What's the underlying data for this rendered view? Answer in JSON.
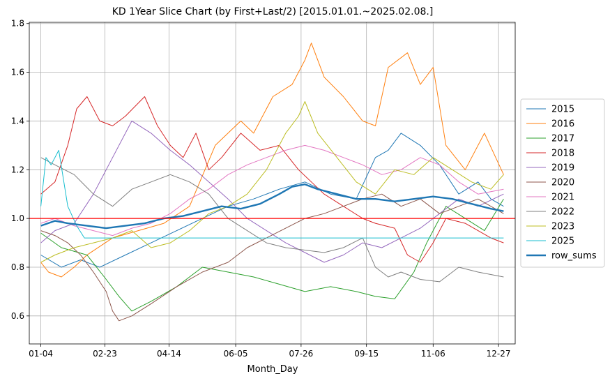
{
  "chart_data": {
    "type": "line",
    "title": "KD 1Year Slice Chart (by First+Last/2) [2015.01.01.~2025.02.08.]",
    "xlabel": "Month_Day",
    "ylabel": "",
    "x_ticks": [
      "01-04",
      "02-23",
      "04-14",
      "06-05",
      "07-26",
      "09-15",
      "11-06",
      "12-27"
    ],
    "x_tick_days": [
      4,
      54,
      104,
      156,
      207,
      258,
      310,
      361
    ],
    "xlim": [
      -5,
      374
    ],
    "ylim": [
      0.485,
      1.805
    ],
    "y_ticks": [
      0.6,
      0.8,
      1.0,
      1.2,
      1.4,
      1.6,
      1.8
    ],
    "y_tick_labels": [
      "0.6",
      "0.8",
      "1.0",
      "1.2",
      "1.4",
      "1.6",
      "1.8"
    ],
    "grid": true,
    "reference_line": {
      "y": 1.0,
      "color": "#ff0000"
    },
    "legend_position": "center-right",
    "series": [
      {
        "name": "2015",
        "color": "#1f77b4",
        "width": 1,
        "x": [
          4,
          20,
          35,
          50,
          70,
          90,
          110,
          130,
          150,
          170,
          190,
          210,
          230,
          250,
          265,
          275,
          285,
          300,
          315,
          330,
          345,
          355,
          365
        ],
        "y": [
          0.85,
          0.8,
          0.83,
          0.8,
          0.85,
          0.9,
          0.95,
          1.0,
          1.05,
          1.08,
          1.12,
          1.15,
          1.1,
          1.08,
          1.25,
          1.28,
          1.35,
          1.3,
          1.22,
          1.1,
          1.15,
          1.08,
          1.05
        ]
      },
      {
        "name": "2016",
        "color": "#ff7f0e",
        "width": 1,
        "x": [
          4,
          10,
          20,
          30,
          40,
          60,
          80,
          100,
          120,
          140,
          160,
          170,
          185,
          200,
          210,
          215,
          225,
          240,
          255,
          265,
          275,
          290,
          300,
          310,
          320,
          335,
          350,
          365
        ],
        "y": [
          0.82,
          0.78,
          0.76,
          0.8,
          0.85,
          0.92,
          0.95,
          0.98,
          1.05,
          1.3,
          1.4,
          1.35,
          1.5,
          1.55,
          1.65,
          1.72,
          1.58,
          1.5,
          1.4,
          1.38,
          1.62,
          1.68,
          1.55,
          1.62,
          1.3,
          1.2,
          1.35,
          1.18
        ]
      },
      {
        "name": "2017",
        "color": "#2ca02c",
        "width": 1,
        "x": [
          4,
          20,
          40,
          55,
          65,
          75,
          90,
          110,
          130,
          150,
          170,
          190,
          210,
          230,
          250,
          265,
          280,
          295,
          305,
          320,
          335,
          350,
          365
        ],
        "y": [
          0.94,
          0.88,
          0.85,
          0.75,
          0.68,
          0.62,
          0.66,
          0.72,
          0.8,
          0.78,
          0.76,
          0.73,
          0.7,
          0.72,
          0.7,
          0.68,
          0.67,
          0.78,
          0.9,
          1.05,
          1.0,
          0.95,
          1.08
        ]
      },
      {
        "name": "2018",
        "color": "#d62728",
        "width": 1,
        "x": [
          4,
          15,
          25,
          32,
          40,
          50,
          60,
          70,
          85,
          95,
          105,
          115,
          125,
          135,
          145,
          160,
          175,
          190,
          205,
          215,
          225,
          240,
          255,
          265,
          280,
          290,
          300,
          310,
          320,
          335,
          345,
          355,
          365
        ],
        "y": [
          1.1,
          1.15,
          1.3,
          1.45,
          1.5,
          1.4,
          1.38,
          1.42,
          1.5,
          1.38,
          1.3,
          1.25,
          1.35,
          1.2,
          1.25,
          1.35,
          1.28,
          1.3,
          1.2,
          1.15,
          1.1,
          1.05,
          1.0,
          0.98,
          0.96,
          0.85,
          0.82,
          0.9,
          1.0,
          0.98,
          0.95,
          0.92,
          0.9
        ]
      },
      {
        "name": "2019",
        "color": "#9467bd",
        "width": 1,
        "x": [
          4,
          15,
          30,
          45,
          60,
          75,
          90,
          105,
          120,
          135,
          150,
          165,
          180,
          195,
          210,
          225,
          240,
          255,
          270,
          285,
          300,
          315,
          330,
          345,
          365
        ],
        "y": [
          0.9,
          0.95,
          0.98,
          1.1,
          1.25,
          1.4,
          1.35,
          1.28,
          1.22,
          1.15,
          1.08,
          1.0,
          0.95,
          0.9,
          0.86,
          0.82,
          0.85,
          0.9,
          0.88,
          0.92,
          0.96,
          1.02,
          1.08,
          1.05,
          1.1
        ]
      },
      {
        "name": "2020",
        "color": "#8c564b",
        "width": 1,
        "x": [
          4,
          15,
          25,
          35,
          45,
          55,
          60,
          65,
          75,
          90,
          110,
          130,
          150,
          165,
          180,
          195,
          210,
          225,
          240,
          255,
          270,
          285,
          300,
          315,
          330,
          345,
          365
        ],
        "y": [
          0.95,
          0.93,
          0.9,
          0.85,
          0.78,
          0.7,
          0.62,
          0.58,
          0.6,
          0.65,
          0.72,
          0.78,
          0.82,
          0.88,
          0.92,
          0.96,
          1.0,
          1.02,
          1.05,
          1.08,
          1.1,
          1.05,
          1.08,
          1.02,
          1.05,
          1.08,
          1.02
        ]
      },
      {
        "name": "2021",
        "color": "#e377c2",
        "width": 1,
        "x": [
          4,
          15,
          30,
          45,
          60,
          75,
          90,
          105,
          120,
          135,
          150,
          165,
          180,
          195,
          210,
          225,
          240,
          255,
          270,
          285,
          300,
          315,
          330,
          345,
          365
        ],
        "y": [
          0.98,
          1.0,
          0.97,
          0.95,
          0.93,
          0.96,
          0.98,
          1.02,
          1.08,
          1.12,
          1.18,
          1.22,
          1.25,
          1.28,
          1.3,
          1.28,
          1.25,
          1.22,
          1.18,
          1.2,
          1.25,
          1.22,
          1.15,
          1.1,
          1.12
        ]
      },
      {
        "name": "2022",
        "color": "#7f7f7f",
        "width": 1,
        "x": [
          4,
          15,
          30,
          45,
          60,
          75,
          90,
          105,
          120,
          135,
          150,
          165,
          180,
          195,
          210,
          225,
          240,
          255,
          265,
          275,
          285,
          300,
          315,
          330,
          345,
          365
        ],
        "y": [
          1.25,
          1.22,
          1.18,
          1.1,
          1.05,
          1.12,
          1.15,
          1.18,
          1.15,
          1.1,
          1.0,
          0.95,
          0.9,
          0.88,
          0.87,
          0.86,
          0.88,
          0.92,
          0.8,
          0.76,
          0.78,
          0.75,
          0.74,
          0.8,
          0.78,
          0.76
        ]
      },
      {
        "name": "2023",
        "color": "#bcbd22",
        "width": 1,
        "x": [
          4,
          15,
          30,
          45,
          60,
          75,
          90,
          105,
          120,
          135,
          150,
          165,
          180,
          195,
          205,
          210,
          220,
          235,
          250,
          265,
          280,
          295,
          310,
          325,
          340,
          355,
          365
        ],
        "y": [
          0.82,
          0.85,
          0.88,
          0.9,
          0.92,
          0.95,
          0.88,
          0.9,
          0.95,
          1.02,
          1.05,
          1.1,
          1.2,
          1.35,
          1.42,
          1.48,
          1.35,
          1.25,
          1.15,
          1.1,
          1.2,
          1.18,
          1.25,
          1.2,
          1.15,
          1.12,
          1.18
        ]
      },
      {
        "name": "2025",
        "color": "#17becf",
        "width": 1,
        "x": [
          4,
          8,
          12,
          18,
          25,
          32,
          38,
          45,
          60,
          100,
          150,
          200,
          250,
          300,
          340,
          365
        ],
        "y": [
          1.05,
          1.25,
          1.22,
          1.28,
          1.05,
          0.97,
          0.92,
          0.92,
          0.92,
          0.92,
          0.92,
          0.92,
          0.92,
          0.92,
          0.92,
          0.92
        ]
      },
      {
        "name": "row_sums",
        "color": "#1f77b4",
        "width": 2.4,
        "x": [
          4,
          15,
          25,
          40,
          55,
          70,
          85,
          100,
          115,
          130,
          145,
          160,
          175,
          190,
          200,
          210,
          220,
          235,
          250,
          265,
          280,
          295,
          310,
          325,
          340,
          355,
          365
        ],
        "y": [
          0.97,
          0.99,
          0.98,
          0.97,
          0.96,
          0.97,
          0.98,
          1.0,
          1.01,
          1.03,
          1.05,
          1.04,
          1.06,
          1.1,
          1.13,
          1.14,
          1.12,
          1.1,
          1.08,
          1.08,
          1.07,
          1.08,
          1.09,
          1.08,
          1.06,
          1.04,
          1.03
        ]
      }
    ]
  }
}
